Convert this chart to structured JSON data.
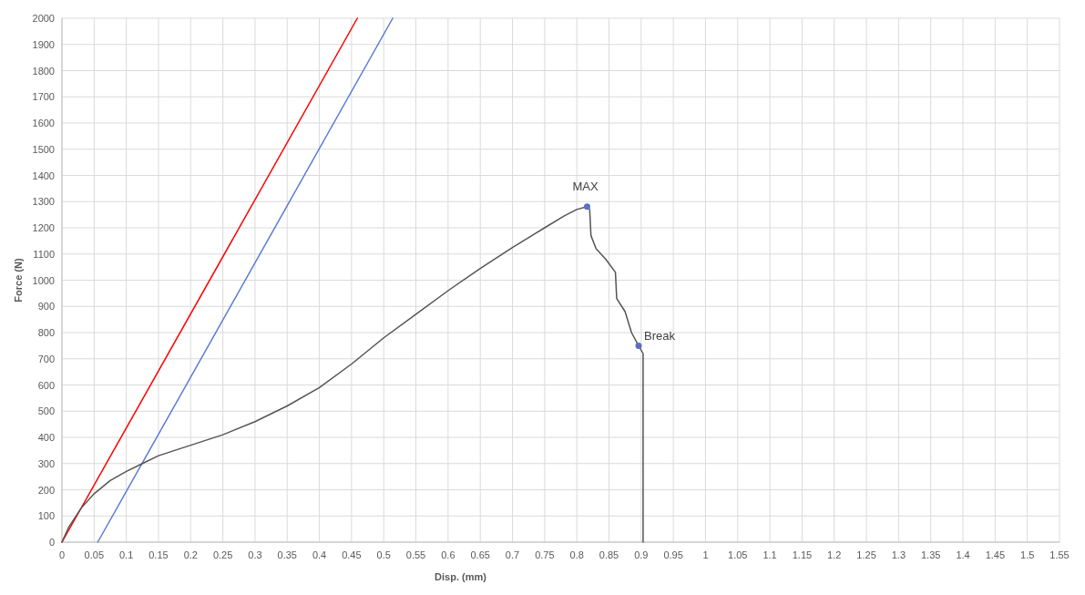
{
  "chart_data": {
    "type": "line",
    "xlabel": "Disp. (mm)",
    "ylabel": "Force (N)",
    "xlim": [
      0,
      1.55
    ],
    "ylim": [
      0,
      2000
    ],
    "xticks": [
      0,
      0.05,
      0.1,
      0.15,
      0.2,
      0.25,
      0.3,
      0.35,
      0.4,
      0.45,
      0.5,
      0.55,
      0.6,
      0.65,
      0.7,
      0.75,
      0.8,
      0.85,
      0.9,
      0.95,
      1,
      1.05,
      1.1,
      1.15,
      1.2,
      1.25,
      1.3,
      1.35,
      1.4,
      1.45,
      1.5,
      1.55
    ],
    "yticks": [
      0,
      100,
      200,
      300,
      400,
      500,
      600,
      700,
      800,
      900,
      1000,
      1100,
      1200,
      1300,
      1400,
      1500,
      1600,
      1700,
      1800,
      1900,
      2000
    ],
    "grid": true,
    "marker": "none",
    "line_style": "solid",
    "series": [
      {
        "color": "#ff0000",
        "x": [
          0,
          0.459
        ],
        "values": [
          0,
          2000
        ]
      },
      {
        "color": "#5b7bd5",
        "x": [
          0.0556,
          0.514
        ],
        "values": [
          0,
          2000
        ]
      },
      {
        "color": "#555555",
        "x": [
          0,
          0.01,
          0.03,
          0.05,
          0.075,
          0.1,
          0.125,
          0.15,
          0.2,
          0.25,
          0.3,
          0.35,
          0.4,
          0.45,
          0.5,
          0.55,
          0.6,
          0.65,
          0.7,
          0.75,
          0.78,
          0.8,
          0.816,
          0.82,
          0.822,
          0.83,
          0.845,
          0.86,
          0.862,
          0.875,
          0.885,
          0.896,
          0.903,
          0.903
        ],
        "values": [
          0,
          55,
          130,
          185,
          235,
          270,
          300,
          330,
          370,
          410,
          460,
          520,
          590,
          680,
          780,
          870,
          960,
          1045,
          1125,
          1200,
          1245,
          1270,
          1281,
          1270,
          1170,
          1120,
          1080,
          1030,
          930,
          880,
          800,
          750,
          720,
          0
        ]
      },
      {
        "type": "scatter",
        "marker": "circle",
        "color": "#5b6fc4",
        "x": [
          0.816,
          0.896
        ],
        "values": [
          1281,
          750
        ]
      }
    ],
    "annotations": [
      {
        "text": "MAX",
        "x": 0.816,
        "y": 1281
      },
      {
        "text": "Break",
        "x": 0.896,
        "y": 750
      }
    ]
  }
}
